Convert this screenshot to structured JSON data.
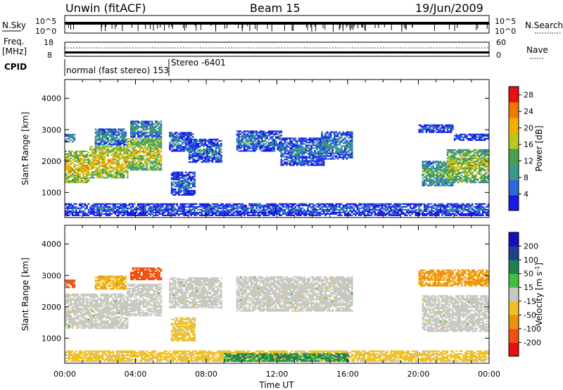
{
  "header": {
    "station": "Unwin (fitACF)",
    "beam": "Beam 15",
    "date": "19/Jun/2009"
  },
  "panels": {
    "nsky_label": "N.Sky",
    "nsearch_label": "N.Search",
    "freq_label": "Freq.",
    "freq_unit": "[MHz]",
    "nave_label": "Nave",
    "cpid_label": "CPID",
    "nsky_ticks": [
      "10^5",
      "10^0"
    ],
    "nsearch_ticks": [
      "10^5",
      "10^0"
    ],
    "freq_ticks": [
      "18",
      "8"
    ],
    "nave_ticks": [
      "60",
      "0"
    ],
    "cpid_text_1": "normal (fast stereo) 153",
    "cpid_text_2": "Stereo -6401"
  },
  "colors": {
    "power": [
      "#1a1ae6",
      "#2b6ad6",
      "#3a9a8a",
      "#4aa04a",
      "#b8c820",
      "#f0b000",
      "#f07800",
      "#e81010"
    ],
    "velocity": [
      "#e81010",
      "#f05010",
      "#f09010",
      "#f0c020",
      "#c8c8c0",
      "#40c040",
      "#208050",
      "#204090",
      "#1010c0"
    ]
  },
  "chart_data": [
    {
      "type": "heatmap",
      "title": "",
      "xlabel": "",
      "ylabel": "Slant Range [km]",
      "x_ticks": [
        "00:00",
        "04:00",
        "08:00",
        "12:00",
        "16:00",
        "20:00",
        "00:00"
      ],
      "y_ticks": [
        "1000",
        "2000",
        "3000",
        "4000"
      ],
      "ylim": [
        200,
        4600
      ],
      "colorbar_label": "Power [dB]",
      "colorbar_ticks": [
        "4",
        "8",
        "12",
        "16",
        "20",
        "24",
        "28"
      ],
      "clim": [
        0,
        30
      ],
      "regions": [
        {
          "t0": 0.0,
          "t1": 1.4,
          "r0": 1300,
          "r1": 2300,
          "level": 20
        },
        {
          "t0": 1.4,
          "t1": 3.6,
          "r0": 1450,
          "r1": 2450,
          "level": 20
        },
        {
          "t0": 3.5,
          "t1": 5.4,
          "r0": 1700,
          "r1": 2700,
          "level": 18
        },
        {
          "t0": 0.0,
          "t1": 0.6,
          "r0": 2600,
          "r1": 2850,
          "level": 10
        },
        {
          "t0": 1.7,
          "t1": 3.5,
          "r0": 2500,
          "r1": 3000,
          "level": 10
        },
        {
          "t0": 3.7,
          "t1": 5.4,
          "r0": 2750,
          "r1": 3250,
          "level": 11
        },
        {
          "t0": 5.9,
          "t1": 7.2,
          "r0": 2300,
          "r1": 2900,
          "level": 8
        },
        {
          "t0": 7.0,
          "t1": 8.8,
          "r0": 1950,
          "r1": 2700,
          "level": 8
        },
        {
          "t0": 6.0,
          "t1": 7.3,
          "r0": 900,
          "r1": 1650,
          "level": 7
        },
        {
          "t0": 9.7,
          "t1": 12.2,
          "r0": 2300,
          "r1": 2950,
          "level": 8
        },
        {
          "t0": 12.2,
          "t1": 14.6,
          "r0": 1850,
          "r1": 2750,
          "level": 8
        },
        {
          "t0": 14.5,
          "t1": 16.2,
          "r0": 2050,
          "r1": 2950,
          "level": 9
        },
        {
          "t0": 20.2,
          "t1": 22.0,
          "r0": 1200,
          "r1": 2000,
          "level": 13
        },
        {
          "t0": 21.6,
          "t1": 24.0,
          "r0": 1300,
          "r1": 2350,
          "level": 17
        },
        {
          "t0": 20.0,
          "t1": 22.0,
          "r0": 2900,
          "r1": 3150,
          "level": 6
        },
        {
          "t0": 22.0,
          "t1": 24.0,
          "r0": 2650,
          "r1": 2850,
          "level": 6
        },
        {
          "t0": 0.0,
          "t1": 24.0,
          "r0": 250,
          "r1": 650,
          "level": 6
        }
      ]
    },
    {
      "type": "heatmap",
      "title": "",
      "xlabel": "Time UT",
      "ylabel": "Slant Range [km]",
      "x_ticks": [
        "00:00",
        "04:00",
        "08:00",
        "12:00",
        "16:00",
        "20:00",
        "00:00"
      ],
      "y_ticks": [
        "1000",
        "2000",
        "3000",
        "4000"
      ],
      "ylim": [
        200,
        4600
      ],
      "colorbar_label": "Velocity [m s",
      "colorbar_label_sup": "-1",
      "colorbar_label_end": "]",
      "colorbar_ticks": [
        "200",
        "100",
        "50",
        "15",
        "-15",
        "-50",
        "-100",
        "-200"
      ],
      "regions": [
        {
          "t0": 0.0,
          "t1": 3.6,
          "r0": 1300,
          "r1": 2400,
          "vel": 0
        },
        {
          "t0": 3.5,
          "t1": 5.4,
          "r0": 1700,
          "r1": 2700,
          "vel": 0
        },
        {
          "t0": 0.0,
          "t1": 0.6,
          "r0": 2600,
          "r1": 2850,
          "vel": -120
        },
        {
          "t0": 1.7,
          "t1": 3.5,
          "r0": 2550,
          "r1": 3000,
          "vel": -40
        },
        {
          "t0": 3.7,
          "t1": 5.4,
          "r0": 2850,
          "r1": 3250,
          "vel": -150
        },
        {
          "t0": 5.9,
          "t1": 8.8,
          "r0": 1950,
          "r1": 2900,
          "vel": 0
        },
        {
          "t0": 6.0,
          "t1": 7.3,
          "r0": 900,
          "r1": 1650,
          "vel": -30
        },
        {
          "t0": 9.7,
          "t1": 16.2,
          "r0": 1850,
          "r1": 2950,
          "vel": 0
        },
        {
          "t0": 20.2,
          "t1": 24.0,
          "r0": 1200,
          "r1": 2350,
          "vel": 0
        },
        {
          "t0": 20.0,
          "t1": 24.0,
          "r0": 2650,
          "r1": 3150,
          "vel": -60
        },
        {
          "t0": 0.0,
          "t1": 24.0,
          "r0": 250,
          "r1": 600,
          "vel": -30
        },
        {
          "t0": 9.0,
          "t1": 16.0,
          "r0": 250,
          "r1": 500,
          "vel": 60
        }
      ]
    }
  ]
}
